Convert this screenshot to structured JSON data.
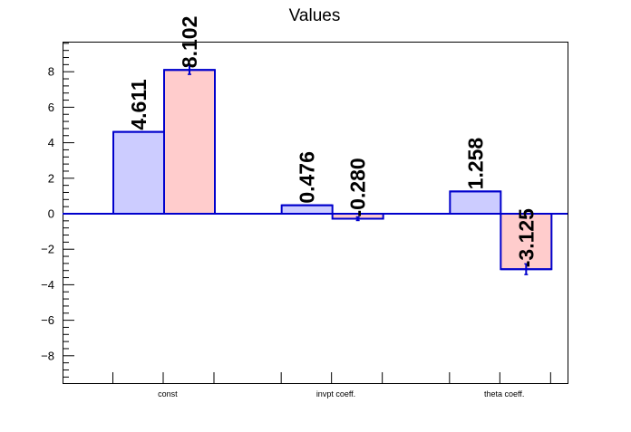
{
  "chart_data": {
    "type": "bar",
    "title": "Values",
    "xlabel": "",
    "ylabel": "",
    "categories": [
      "const",
      "invpt coeff.",
      "theta coeff."
    ],
    "series": [
      {
        "values": [
          4.611,
          0.476,
          1.258
        ],
        "errors": [
          0,
          0,
          0
        ],
        "labels": [
          "4.611",
          "0.476",
          "1.258"
        ],
        "fill_color": "#ccccff"
      },
      {
        "values": [
          8.102,
          -0.28,
          -3.125
        ],
        "errors": [
          0.25,
          0.1,
          0.3
        ],
        "labels": [
          "8.102",
          "-0.280",
          "-3.125"
        ],
        "fill_color": "#ffcccc"
      }
    ],
    "ylim": [
      -9.6,
      9.6
    ],
    "yticks": [
      -8,
      -6,
      -4,
      -2,
      0,
      2,
      4,
      6,
      8
    ],
    "ytick_labels": [
      "−8",
      "−6",
      "−4",
      "−2",
      "0",
      "2",
      "4",
      "6",
      "8"
    ],
    "bar_edge_color": "#0000cc",
    "zero_line_color": "#0000cc",
    "legend": "none",
    "grid": false
  }
}
